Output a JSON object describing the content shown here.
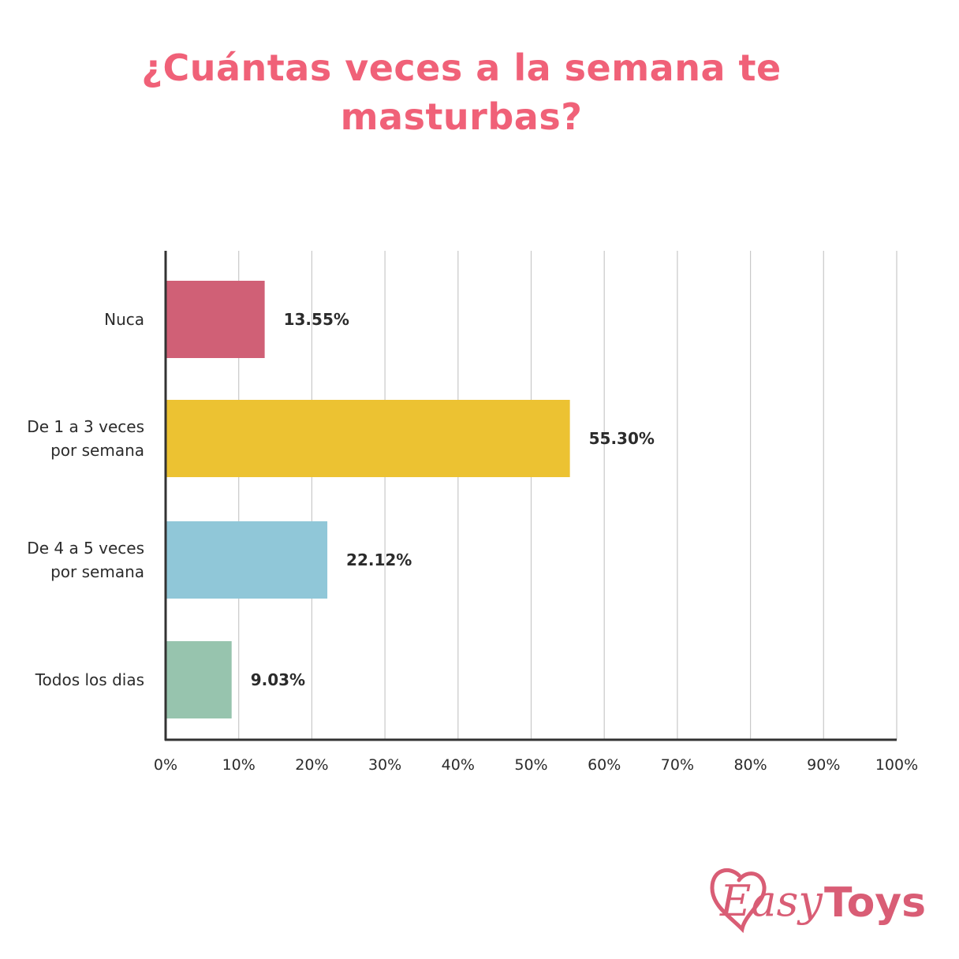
{
  "title": {
    "line1": "¿Cuántas veces a la semana te",
    "line2": "masturbas?"
  },
  "colors": {
    "title": "#f06178",
    "axis": "#333333",
    "grid": "#c8c8c8",
    "logo": "#d95d75"
  },
  "chart_data": {
    "type": "bar",
    "orientation": "horizontal",
    "categories": [
      [
        "Nuca"
      ],
      [
        "De 1 a 3 veces",
        "por semana"
      ],
      [
        "De 4 a 5 veces",
        "por semana"
      ],
      [
        "Todos los dias"
      ]
    ],
    "values": [
      13.55,
      55.3,
      22.12,
      9.03
    ],
    "value_labels": [
      "13.55%",
      "55.30%",
      "22.12%",
      "9.03%"
    ],
    "bar_colors": [
      "#d06076",
      "#ecc232",
      "#90c7d8",
      "#97c4ae"
    ],
    "xlim": [
      0,
      100
    ],
    "xticks": [
      0,
      10,
      20,
      30,
      40,
      50,
      60,
      70,
      80,
      90,
      100
    ],
    "xtick_labels": [
      "0%",
      "10%",
      "20%",
      "30%",
      "40%",
      "50%",
      "60%",
      "70%",
      "80%",
      "90%",
      "100%"
    ],
    "grid": true
  },
  "logo": {
    "text_easy": "Easy",
    "text_toys": "Toys"
  }
}
